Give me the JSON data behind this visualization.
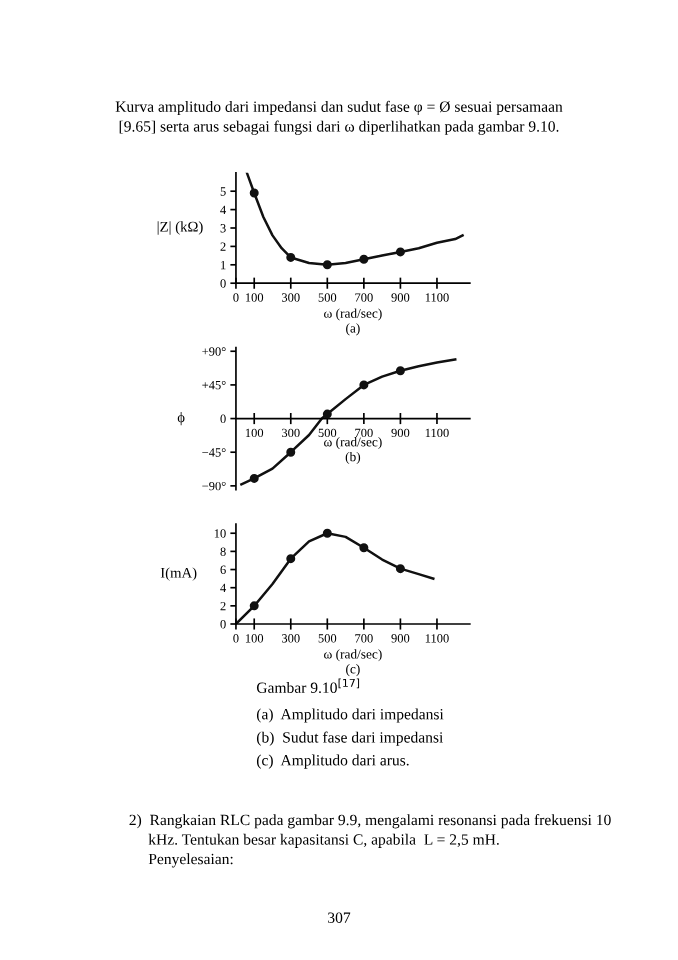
{
  "chart_data": [
    {
      "type": "line",
      "xlabel": "ω (rad/sec)",
      "subtitle": "(a)",
      "ylabel": "|Z| (kΩ)",
      "annotations": [
        "Kurva amplitudo dari impedansi dan sudut fase φ = Ø sesuai persamaan\n[9.65] serta arus sebagai fungsi dari ω diperlihatkan pada gambar 9.10."
      ],
      "xlim": [
        0,
        1280
      ],
      "ylim": [
        0,
        6
      ],
      "xticks": [
        0,
        100,
        300,
        500,
        700,
        900,
        1100
      ],
      "yticks": [
        0,
        1,
        2,
        3,
        4,
        5
      ],
      "series": [
        {
          "color": "#111111",
          "x": [
            60,
            100,
            150,
            200,
            250,
            300,
            400,
            500,
            600,
            700,
            800,
            900,
            1000,
            1100,
            1200,
            1240
          ],
          "values": [
            6.0,
            4.9,
            3.6,
            2.6,
            1.9,
            1.4,
            1.1,
            1.0,
            1.1,
            1.3,
            1.5,
            1.7,
            1.9,
            2.2,
            2.4,
            2.6
          ]
        },
        {
          "type": "scatter",
          "color": "#111111",
          "x": [
            100,
            300,
            500,
            700,
            900
          ],
          "values": [
            4.9,
            1.4,
            1.0,
            1.3,
            1.7
          ]
        }
      ]
    },
    {
      "type": "line",
      "xlabel": "ω (rad/sec)",
      "subtitle": "(b)",
      "ylabel": "ϕ",
      "xlim": [
        0,
        1280
      ],
      "ylim": [
        -95,
        95
      ],
      "xticks": [
        100,
        300,
        500,
        700,
        900,
        1100
      ],
      "yticks": [
        {
          "value": 90,
          "label": "+90°"
        },
        {
          "value": 45,
          "label": "+45°"
        },
        0,
        {
          "value": -45,
          "label": "−45°"
        },
        {
          "value": -90,
          "label": "−90°"
        }
      ],
      "series": [
        {
          "color": "#111111",
          "x": [
            30,
            100,
            200,
            300,
            400,
            470,
            500,
            600,
            700,
            800,
            900,
            1000,
            1100,
            1200
          ],
          "values": [
            -88,
            -80,
            -67,
            -45,
            -22,
            0,
            6,
            26,
            45,
            56,
            64,
            70,
            75,
            79
          ]
        },
        {
          "type": "scatter",
          "color": "#111111",
          "x": [
            100,
            300,
            500,
            700,
            900
          ],
          "values": [
            -80,
            -45,
            6,
            45,
            64
          ]
        }
      ]
    },
    {
      "type": "line",
      "xlabel": "ω (rad/sec)",
      "subtitle": "(c)",
      "ylabel": "I(mA)",
      "annotations": [
        "Gambar 9.10$^{[17]}$",
        "(a)  Amplitudo dari impedansi",
        "(b)  Sudut fase dari impedansi",
        "(c)  Amplitudo dari arus.",
        "2)  Rangkaian RLC pada gambar 9.9, mengalami resonansi pada frekuensi 10\n     kHz. Tentukan besar kapasitansi C, apabila  L = 2,5 mH.\n     Penyelesaian:",
        "307"
      ],
      "xlim": [
        0,
        1280
      ],
      "ylim": [
        0,
        11
      ],
      "xticks": [
        0,
        100,
        300,
        500,
        700,
        900,
        1100
      ],
      "yticks": [
        0,
        2,
        4,
        6,
        8,
        10
      ],
      "series": [
        {
          "color": "#111111",
          "x": [
            0,
            100,
            200,
            300,
            400,
            500,
            600,
            700,
            800,
            900,
            1000,
            1080
          ],
          "values": [
            0,
            2.0,
            4.4,
            7.2,
            9.1,
            10.0,
            9.6,
            8.4,
            7.1,
            6.1,
            5.5,
            5.0
          ]
        },
        {
          "type": "scatter",
          "color": "#111111",
          "x": [
            100,
            300,
            500,
            700,
            900
          ],
          "values": [
            2.0,
            7.2,
            10.0,
            8.4,
            6.1
          ]
        }
      ]
    }
  ]
}
